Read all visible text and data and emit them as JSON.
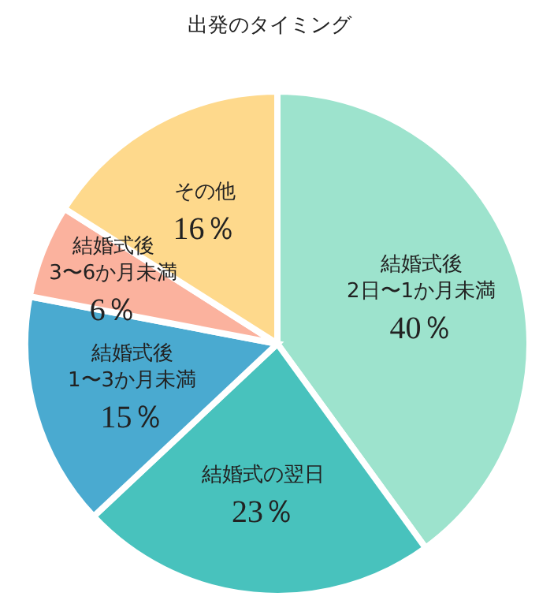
{
  "chart_data": {
    "type": "pie",
    "title": "出発のタイミング",
    "categories": [
      "結婚式後\n2日〜1か月未満",
      "結婚式の翌日",
      "結婚式後\n1〜3か月未満",
      "結婚式後\n3〜6か月未満",
      "その他"
    ],
    "values": [
      40,
      23,
      15,
      6,
      16
    ],
    "value_labels": [
      "40％",
      "23％",
      "15％",
      "6％",
      "16％"
    ],
    "colors": [
      "#9de3cd",
      "#48c2bd",
      "#4aaad0",
      "#fbb29e",
      "#fed98c"
    ]
  }
}
